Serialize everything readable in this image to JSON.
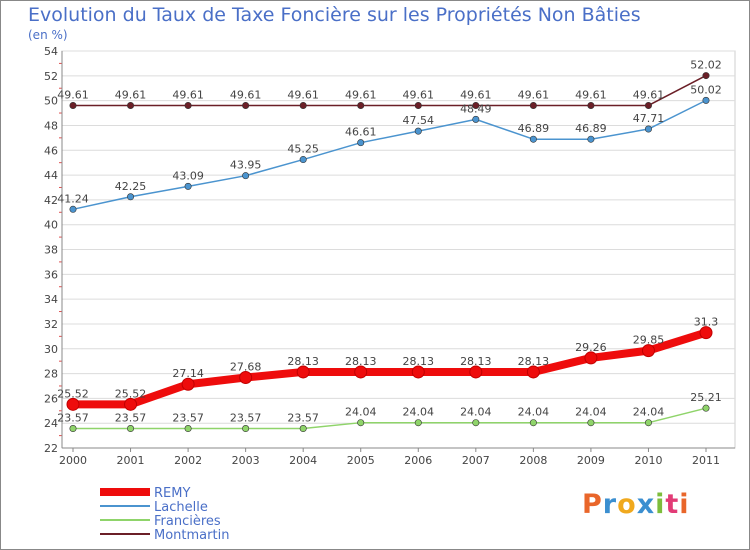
{
  "header": {
    "title": "Evolution du Taux de Taxe Foncière sur les Propriétés Non Bâties",
    "subtitle": "(en %)"
  },
  "logo": {
    "text": "Proxiti",
    "colors": [
      "#e9662a",
      "#3b8fd0",
      "#f0a91e",
      "#3b8fd0",
      "#7dbd3c",
      "#e23b76",
      "#e9662a"
    ]
  },
  "chart_data": {
    "type": "line",
    "x": [
      "2000",
      "2001",
      "2002",
      "2003",
      "2004",
      "2005",
      "2006",
      "2007",
      "2008",
      "2009",
      "2010",
      "2011"
    ],
    "ylim": [
      22,
      54
    ],
    "yticks": [
      22,
      24,
      26,
      28,
      30,
      32,
      34,
      36,
      38,
      40,
      42,
      44,
      46,
      48,
      50,
      52,
      54
    ],
    "grid": "horizontal",
    "legend_position": "bottom-left",
    "series": [
      {
        "name": "Montmartin",
        "color": "#6b1f27",
        "values": [
          49.61,
          49.61,
          49.61,
          49.61,
          49.61,
          49.61,
          49.61,
          49.61,
          49.61,
          49.61,
          49.61,
          52.02
        ],
        "labels": [
          "49.61",
          "49.61",
          "49.61",
          "49.61",
          "49.61",
          "49.61",
          "49.61",
          "49.61",
          "49.61",
          "49.61",
          "49.61",
          "52.02"
        ]
      },
      {
        "name": "Lachelle",
        "color": "#4b94cf",
        "values": [
          41.24,
          42.25,
          43.09,
          43.95,
          45.25,
          46.61,
          47.54,
          48.49,
          46.89,
          46.89,
          47.71,
          50.02
        ],
        "labels": [
          "41.24",
          "42.25",
          "43.09",
          "43.95",
          "45.25",
          "46.61",
          "47.54",
          "48.49",
          "46.89",
          "46.89",
          "47.71",
          "50.02"
        ]
      },
      {
        "name": "Francières",
        "color": "#8fd46a",
        "values": [
          23.57,
          23.57,
          23.57,
          23.57,
          23.57,
          24.04,
          24.04,
          24.04,
          24.04,
          24.04,
          24.04,
          25.21
        ],
        "labels": [
          "23.57",
          "23.57",
          "23.57",
          "23.57",
          "23.57",
          "24.04",
          "24.04",
          "24.04",
          "24.04",
          "24.04",
          "24.04",
          "25.21"
        ]
      },
      {
        "name": "REMY",
        "color": "#ee0c0c",
        "values": [
          25.52,
          25.52,
          27.14,
          27.68,
          28.13,
          28.13,
          28.13,
          28.13,
          28.13,
          29.26,
          29.85,
          31.3
        ],
        "labels": [
          "25.52",
          "25.52",
          "27.14",
          "27.68",
          "28.13",
          "28.13",
          "28.13",
          "28.13",
          "28.13",
          "29.26",
          "29.85",
          "31.3"
        ]
      }
    ],
    "legend": [
      {
        "name": "REMY",
        "color": "#ee0c0c"
      },
      {
        "name": "Lachelle",
        "color": "#4b94cf"
      },
      {
        "name": "Francières",
        "color": "#8fd46a"
      },
      {
        "name": "Montmartin",
        "color": "#6b1f27"
      }
    ]
  }
}
